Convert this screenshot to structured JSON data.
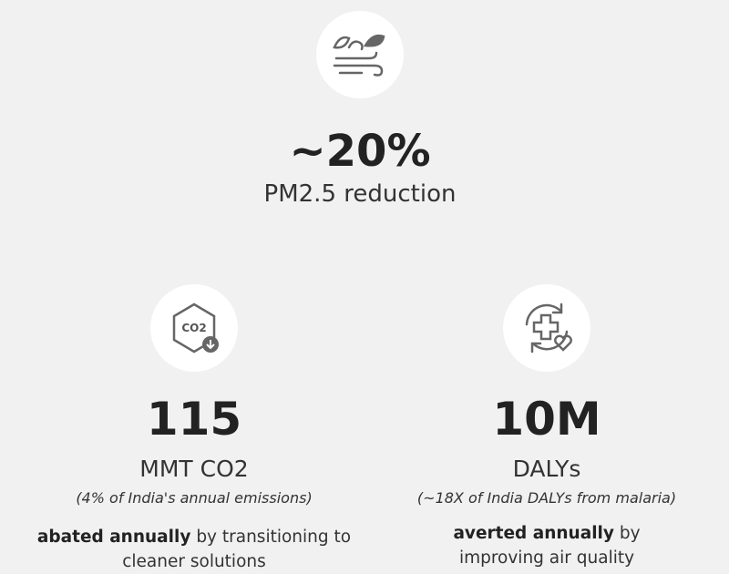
{
  "headline": {
    "value": "~20%",
    "label": "PM2.5 reduction"
  },
  "stats": [
    {
      "value": "115",
      "unit": "MMT CO2",
      "note": "(4% of India's annual emissions)",
      "description_bold": "abated annually",
      "description": "by transitioning to cleaner solutions",
      "icon_text": "CO2"
    },
    {
      "value": "10M",
      "unit": "DALYs",
      "note": "(~18X of India DALYs from malaria)",
      "description_bold": "averted annually",
      "description": "by improving air quality"
    }
  ]
}
